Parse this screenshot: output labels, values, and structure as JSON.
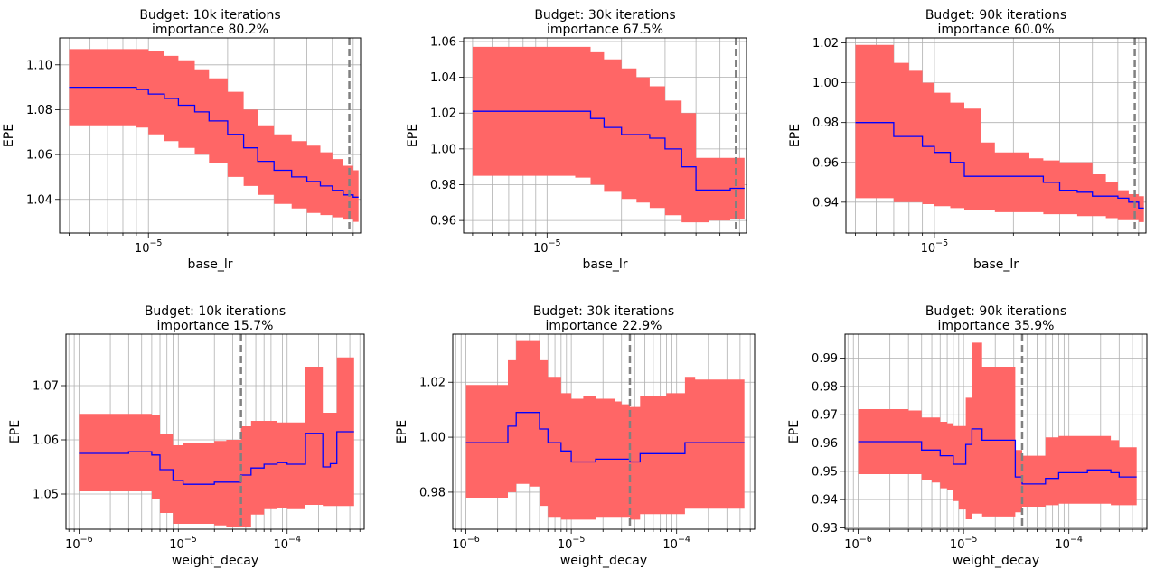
{
  "chart_data": [
    {
      "type": "line",
      "title_line1": "Budget: 10k iterations",
      "title_line2": "importance 80.2%",
      "xlabel": "base_lr",
      "ylabel": "EPE",
      "xscale": "log",
      "xlim": [
        4.6e-06,
        6.4e-05
      ],
      "ylim": [
        1.025,
        1.112
      ],
      "yticks": [
        1.04,
        1.06,
        1.08,
        1.1
      ],
      "ytick_labels": [
        "1.04",
        "1.06",
        "1.08",
        "1.10"
      ],
      "xtick_major": [
        {
          "value": 1e-05,
          "base": "10",
          "exp": "−5"
        }
      ],
      "grid": true,
      "incumbent_x": 5.8e-05,
      "x": [
        5e-06,
        6e-06,
        7e-06,
        8e-06,
        9e-06,
        1e-05,
        1.15e-05,
        1.3e-05,
        1.5e-05,
        1.7e-05,
        2e-05,
        2.3e-05,
        2.6e-05,
        3e-05,
        3.5e-05,
        4e-05,
        4.5e-05,
        5e-05,
        5.5e-05,
        6e-05
      ],
      "series": [
        {
          "values": [
            1.09,
            1.09,
            1.09,
            1.09,
            1.089,
            1.087,
            1.085,
            1.082,
            1.079,
            1.075,
            1.069,
            1.063,
            1.057,
            1.053,
            1.05,
            1.048,
            1.046,
            1.044,
            1.042,
            1.041
          ]
        }
      ],
      "band_upper": [
        1.107,
        1.107,
        1.107,
        1.107,
        1.107,
        1.106,
        1.104,
        1.102,
        1.098,
        1.094,
        1.088,
        1.08,
        1.073,
        1.069,
        1.066,
        1.064,
        1.061,
        1.058,
        1.055,
        1.053
      ],
      "band_lower": [
        1.073,
        1.073,
        1.073,
        1.073,
        1.072,
        1.069,
        1.066,
        1.063,
        1.06,
        1.056,
        1.05,
        1.046,
        1.042,
        1.038,
        1.036,
        1.034,
        1.033,
        1.032,
        1.031,
        1.03
      ]
    },
    {
      "type": "line",
      "title_line1": "Budget: 30k iterations",
      "title_line2": "importance 67.5%",
      "xlabel": "base_lr",
      "ylabel": "EPE",
      "xscale": "log",
      "xlim": [
        4.6e-06,
        6.4e-05
      ],
      "ylim": [
        0.953,
        1.062
      ],
      "yticks": [
        0.96,
        0.98,
        1.0,
        1.02,
        1.04,
        1.06
      ],
      "ytick_labels": [
        "0.96",
        "0.98",
        "1.00",
        "1.02",
        "1.04",
        "1.06"
      ],
      "xtick_major": [
        {
          "value": 1e-05,
          "base": "10",
          "exp": "−5"
        }
      ],
      "grid": true,
      "incumbent_x": 5.8e-05,
      "x": [
        5e-06,
        6e-06,
        7e-06,
        8e-06,
        9e-06,
        1e-05,
        1.15e-05,
        1.3e-05,
        1.5e-05,
        1.7e-05,
        2e-05,
        2.3e-05,
        2.6e-05,
        3e-05,
        3.5e-05,
        4e-05,
        4.5e-05,
        5e-05,
        5.5e-05,
        6e-05
      ],
      "series": [
        {
          "values": [
            1.021,
            1.021,
            1.021,
            1.021,
            1.021,
            1.021,
            1.021,
            1.021,
            1.017,
            1.012,
            1.008,
            1.008,
            1.006,
            1.0,
            0.99,
            0.977,
            0.977,
            0.977,
            0.978,
            0.978
          ]
        }
      ],
      "band_upper": [
        1.057,
        1.057,
        1.057,
        1.057,
        1.057,
        1.057,
        1.057,
        1.057,
        1.054,
        1.05,
        1.045,
        1.04,
        1.035,
        1.027,
        1.02,
        0.995,
        0.995,
        0.995,
        0.995,
        0.995
      ],
      "band_lower": [
        0.985,
        0.985,
        0.985,
        0.985,
        0.985,
        0.985,
        0.985,
        0.984,
        0.98,
        0.976,
        0.972,
        0.97,
        0.967,
        0.963,
        0.959,
        0.959,
        0.96,
        0.96,
        0.961,
        0.961
      ]
    },
    {
      "type": "line",
      "title_line1": "Budget: 90k iterations",
      "title_line2": "importance 60.0%",
      "xlabel": "base_lr",
      "ylabel": "EPE",
      "xscale": "log",
      "xlim": [
        4.6e-06,
        6.4e-05
      ],
      "ylim": [
        0.9245,
        1.0225
      ],
      "yticks": [
        0.94,
        0.96,
        0.98,
        1.0,
        1.02
      ],
      "ytick_labels": [
        "0.94",
        "0.96",
        "0.98",
        "1.00",
        "1.02"
      ],
      "xtick_major": [
        {
          "value": 1e-05,
          "base": "10",
          "exp": "−5"
        }
      ],
      "grid": true,
      "incumbent_x": 5.8e-05,
      "x": [
        5e-06,
        6e-06,
        7e-06,
        8e-06,
        9e-06,
        1e-05,
        1.15e-05,
        1.3e-05,
        1.5e-05,
        1.7e-05,
        2e-05,
        2.3e-05,
        2.6e-05,
        3e-05,
        3.5e-05,
        4e-05,
        4.5e-05,
        5e-05,
        5.5e-05,
        6e-05
      ],
      "series": [
        {
          "values": [
            0.98,
            0.98,
            0.973,
            0.973,
            0.968,
            0.965,
            0.96,
            0.953,
            0.953,
            0.953,
            0.953,
            0.953,
            0.95,
            0.946,
            0.945,
            0.943,
            0.943,
            0.942,
            0.94,
            0.937
          ]
        }
      ],
      "band_upper": [
        1.019,
        1.019,
        1.01,
        1.006,
        1.0,
        0.995,
        0.99,
        0.987,
        0.97,
        0.965,
        0.965,
        0.962,
        0.961,
        0.96,
        0.96,
        0.954,
        0.95,
        0.946,
        0.944,
        0.943
      ],
      "band_lower": [
        0.942,
        0.942,
        0.94,
        0.94,
        0.939,
        0.938,
        0.937,
        0.936,
        0.936,
        0.935,
        0.935,
        0.935,
        0.934,
        0.934,
        0.933,
        0.933,
        0.932,
        0.931,
        0.931,
        0.93
      ]
    },
    {
      "type": "line",
      "title_line1": "Budget: 10k iterations",
      "title_line2": "importance 15.7%",
      "xlabel": "weight_decay",
      "ylabel": "EPE",
      "xscale": "log",
      "xlim": [
        7.5e-07,
        0.00055
      ],
      "ylim": [
        1.0435,
        1.0795
      ],
      "yticks": [
        1.05,
        1.06,
        1.07
      ],
      "ytick_labels": [
        "1.05",
        "1.06",
        "1.07"
      ],
      "xtick_major": [
        {
          "value": 1e-06,
          "base": "10",
          "exp": "−6"
        },
        {
          "value": 1e-05,
          "base": "10",
          "exp": "−5"
        },
        {
          "value": 0.0001,
          "base": "10",
          "exp": "−4"
        }
      ],
      "grid": true,
      "incumbent_x": 3.6e-05,
      "x": [
        1e-06,
        1.5e-06,
        2e-06,
        3e-06,
        4e-06,
        5e-06,
        6e-06,
        8e-06,
        1e-05,
        1.3e-05,
        1.7e-05,
        2e-05,
        2.6e-05,
        3e-05,
        3.6e-05,
        4.5e-05,
        6e-05,
        8e-05,
        0.0001,
        0.00012,
        0.00015,
        0.00018,
        0.00022,
        0.00026,
        0.0003,
        0.00042
      ],
      "series": [
        {
          "values": [
            1.0575,
            1.0575,
            1.0575,
            1.0578,
            1.0578,
            1.0572,
            1.0545,
            1.0525,
            1.0518,
            1.0518,
            1.0518,
            1.0522,
            1.0522,
            1.0522,
            1.0535,
            1.0548,
            1.0555,
            1.0558,
            1.0555,
            1.0555,
            1.0612,
            1.0612,
            1.055,
            1.0556,
            1.0615,
            1.0615
          ]
        }
      ],
      "band_upper": [
        1.0648,
        1.0648,
        1.0648,
        1.0648,
        1.0648,
        1.0645,
        1.061,
        1.059,
        1.0595,
        1.0595,
        1.0595,
        1.0598,
        1.06,
        1.06,
        1.0625,
        1.0635,
        1.0635,
        1.0632,
        1.0632,
        1.0632,
        1.0735,
        1.0735,
        1.065,
        1.065,
        1.0752,
        1.0752
      ],
      "band_lower": [
        1.0505,
        1.0505,
        1.0505,
        1.0505,
        1.0505,
        1.049,
        1.0465,
        1.0445,
        1.0445,
        1.0445,
        1.0445,
        1.0442,
        1.044,
        1.044,
        1.044,
        1.0462,
        1.0472,
        1.0475,
        1.0472,
        1.0472,
        1.048,
        1.048,
        1.0478,
        1.0478,
        1.0478,
        1.0478
      ]
    },
    {
      "type": "line",
      "title_line1": "Budget: 30k iterations",
      "title_line2": "importance 22.9%",
      "xlabel": "weight_decay",
      "ylabel": "EPE",
      "xscale": "log",
      "xlim": [
        7.5e-07,
        0.00055
      ],
      "ylim": [
        0.9665,
        1.0375
      ],
      "yticks": [
        0.98,
        1.0,
        1.02
      ],
      "ytick_labels": [
        "0.98",
        "1.00",
        "1.02"
      ],
      "xtick_major": [
        {
          "value": 1e-06,
          "base": "10",
          "exp": "−6"
        },
        {
          "value": 1e-05,
          "base": "10",
          "exp": "−5"
        },
        {
          "value": 0.0001,
          "base": "10",
          "exp": "−4"
        }
      ],
      "grid": true,
      "incumbent_x": 3.6e-05,
      "x": [
        1e-06,
        1.5e-06,
        2e-06,
        2.5e-06,
        3e-06,
        4e-06,
        5e-06,
        6e-06,
        8e-06,
        1e-05,
        1.3e-05,
        1.7e-05,
        2e-05,
        2.6e-05,
        3e-05,
        3.6e-05,
        4.5e-05,
        6e-05,
        8e-05,
        0.0001,
        0.00012,
        0.00015,
        0.0002,
        0.0003,
        0.00042
      ],
      "series": [
        {
          "values": [
            0.998,
            0.998,
            0.998,
            1.004,
            1.009,
            1.009,
            1.003,
            0.998,
            0.995,
            0.991,
            0.991,
            0.992,
            0.992,
            0.992,
            0.992,
            0.991,
            0.994,
            0.994,
            0.994,
            0.994,
            0.998,
            0.998,
            0.998,
            0.998,
            0.998
          ]
        }
      ],
      "band_upper": [
        1.019,
        1.019,
        1.019,
        1.028,
        1.035,
        1.035,
        1.028,
        1.022,
        1.016,
        1.014,
        1.015,
        1.014,
        1.014,
        1.013,
        1.012,
        1.011,
        1.015,
        1.015,
        1.016,
        1.016,
        1.022,
        1.021,
        1.021,
        1.021,
        1.021
      ],
      "band_lower": [
        0.978,
        0.978,
        0.978,
        0.98,
        0.983,
        0.982,
        0.975,
        0.971,
        0.97,
        0.97,
        0.97,
        0.971,
        0.971,
        0.971,
        0.971,
        0.97,
        0.972,
        0.972,
        0.972,
        0.972,
        0.974,
        0.974,
        0.974,
        0.974,
        0.974
      ]
    },
    {
      "type": "line",
      "title_line1": "Budget: 90k iterations",
      "title_line2": "importance 35.9%",
      "xlabel": "weight_decay",
      "ylabel": "EPE",
      "xscale": "log",
      "xlim": [
        7.5e-07,
        0.00055
      ],
      "ylim": [
        0.9295,
        0.9985
      ],
      "yticks": [
        0.93,
        0.94,
        0.95,
        0.96,
        0.97,
        0.98,
        0.99
      ],
      "ytick_labels": [
        "0.93",
        "0.94",
        "0.95",
        "0.96",
        "0.97",
        "0.98",
        "0.99"
      ],
      "xtick_major": [
        {
          "value": 1e-06,
          "base": "10",
          "exp": "−6"
        },
        {
          "value": 1e-05,
          "base": "10",
          "exp": "−5"
        },
        {
          "value": 0.0001,
          "base": "10",
          "exp": "−4"
        }
      ],
      "grid": true,
      "incumbent_x": 3.6e-05,
      "x": [
        1e-06,
        1.5e-06,
        2e-06,
        3e-06,
        4e-06,
        5e-06,
        6e-06,
        7e-06,
        8e-06,
        9e-06,
        1.05e-05,
        1.2e-05,
        1.5e-05,
        2e-05,
        2.6e-05,
        3.1e-05,
        3.6e-05,
        4.5e-05,
        6e-05,
        8e-05,
        0.0001,
        0.00015,
        0.0002,
        0.00025,
        0.0003,
        0.00042
      ],
      "series": [
        {
          "values": [
            0.9605,
            0.9605,
            0.9605,
            0.9605,
            0.9575,
            0.9575,
            0.9555,
            0.9555,
            0.9525,
            0.9525,
            0.9595,
            0.965,
            0.961,
            0.961,
            0.961,
            0.948,
            0.9455,
            0.9455,
            0.9475,
            0.9495,
            0.9495,
            0.9505,
            0.9505,
            0.9495,
            0.948,
            0.948
          ]
        }
      ],
      "band_upper": [
        0.972,
        0.972,
        0.972,
        0.9715,
        0.969,
        0.969,
        0.9675,
        0.967,
        0.966,
        0.966,
        0.976,
        0.9955,
        0.987,
        0.987,
        0.987,
        0.9575,
        0.9555,
        0.9555,
        0.962,
        0.9625,
        0.9625,
        0.9625,
        0.9625,
        0.961,
        0.9585,
        0.9585
      ],
      "band_lower": [
        0.949,
        0.949,
        0.949,
        0.949,
        0.947,
        0.946,
        0.944,
        0.9435,
        0.9395,
        0.9365,
        0.933,
        0.935,
        0.934,
        0.934,
        0.934,
        0.9355,
        0.9375,
        0.9375,
        0.938,
        0.9385,
        0.9385,
        0.9385,
        0.9385,
        0.938,
        0.938,
        0.938
      ]
    }
  ]
}
